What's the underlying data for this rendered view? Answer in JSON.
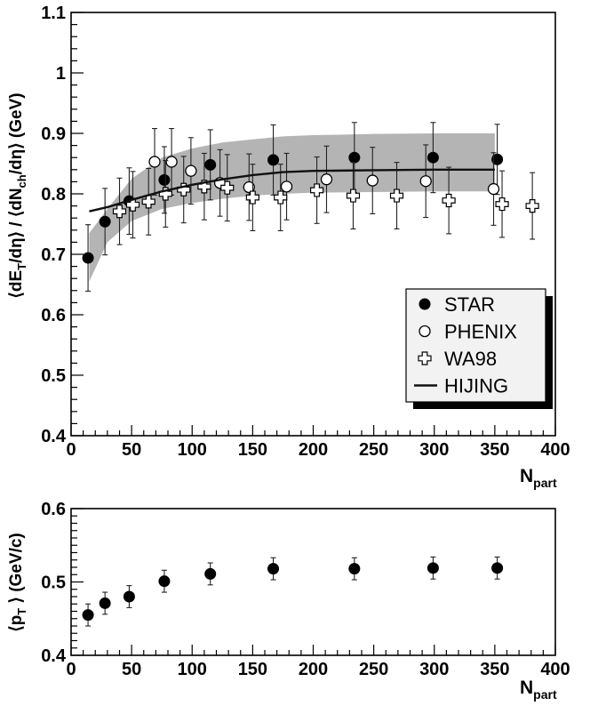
{
  "chart_data": [
    {
      "type": "scatter",
      "xlabel_main": "N",
      "xlabel_sub": "part",
      "ylabel": "⟨dE_T/dη⟩ / ⟨dN_ch/dη⟩ (GeV)",
      "ylabel_parts": {
        "open1": "⟨dE",
        "sub1": "T",
        "mid1": "/dη⟩ / ⟨dN",
        "sub2": "ch",
        "mid2": "/dη⟩ (GeV)"
      },
      "xlim": [
        0,
        400
      ],
      "ylim": [
        0.4,
        1.1
      ],
      "x_ticks": [
        0,
        50,
        100,
        150,
        200,
        250,
        300,
        350,
        400
      ],
      "y_ticks": [
        0.4,
        0.5,
        0.6,
        0.7,
        0.8,
        0.9,
        1.0,
        1.1
      ],
      "x_tick_labels": [
        "0",
        "50",
        "100",
        "150",
        "200",
        "250",
        "300",
        "350",
        "400"
      ],
      "y_tick_labels": [
        "0.4",
        "0.5",
        "0.6",
        "0.7",
        "0.8",
        "0.9",
        "1",
        "1.1"
      ],
      "grid": false,
      "legend_position": "bottom-right",
      "legend": [
        {
          "name": "STAR",
          "marker": "filled-circle"
        },
        {
          "name": "PHENIX",
          "marker": "open-circle"
        },
        {
          "name": "WA98",
          "marker": "open-cross"
        },
        {
          "name": "HIJING",
          "marker": "line"
        }
      ],
      "band": {
        "color": "#b4b4b4",
        "upper": [
          [
            15,
            0.735
          ],
          [
            30,
            0.775
          ],
          [
            50,
            0.825
          ],
          [
            75,
            0.86
          ],
          [
            100,
            0.875
          ],
          [
            125,
            0.885
          ],
          [
            150,
            0.89
          ],
          [
            175,
            0.895
          ],
          [
            200,
            0.897
          ],
          [
            250,
            0.899
          ],
          [
            300,
            0.9
          ],
          [
            350,
            0.9
          ]
        ],
        "lower": [
          [
            15,
            0.655
          ],
          [
            30,
            0.72
          ],
          [
            50,
            0.755
          ],
          [
            75,
            0.775
          ],
          [
            100,
            0.785
          ],
          [
            125,
            0.792
          ],
          [
            150,
            0.797
          ],
          [
            175,
            0.8
          ],
          [
            200,
            0.802
          ],
          [
            250,
            0.803
          ],
          [
            300,
            0.804
          ],
          [
            350,
            0.804
          ]
        ]
      },
      "series": [
        {
          "name": "STAR",
          "marker": "filled-circle",
          "points": [
            {
              "x": 14,
              "y": 0.694,
              "err": 0.055
            },
            {
              "x": 28,
              "y": 0.754,
              "err": 0.055
            },
            {
              "x": 48,
              "y": 0.788,
              "err": 0.055
            },
            {
              "x": 77,
              "y": 0.823,
              "err": 0.055
            },
            {
              "x": 115,
              "y": 0.848,
              "err": 0.058
            },
            {
              "x": 167,
              "y": 0.856,
              "err": 0.058
            },
            {
              "x": 234,
              "y": 0.86,
              "err": 0.058
            },
            {
              "x": 299,
              "y": 0.86,
              "err": 0.058
            },
            {
              "x": 352,
              "y": 0.857,
              "err": 0.058
            }
          ]
        },
        {
          "name": "PHENIX",
          "marker": "open-circle",
          "points": [
            {
              "x": 69,
              "y": 0.853,
              "err": 0.055
            },
            {
              "x": 83,
              "y": 0.853,
              "err": 0.055
            },
            {
              "x": 99,
              "y": 0.838,
              "err": 0.055
            },
            {
              "x": 123,
              "y": 0.818,
              "err": 0.055
            },
            {
              "x": 147,
              "y": 0.811,
              "err": 0.055
            },
            {
              "x": 178,
              "y": 0.812,
              "err": 0.055
            },
            {
              "x": 211,
              "y": 0.824,
              "err": 0.055
            },
            {
              "x": 249,
              "y": 0.822,
              "err": 0.055
            },
            {
              "x": 293,
              "y": 0.821,
              "err": 0.06
            },
            {
              "x": 349,
              "y": 0.808,
              "err": 0.06
            }
          ]
        },
        {
          "name": "WA98",
          "marker": "open-cross",
          "points": [
            {
              "x": 40,
              "y": 0.771,
              "err": 0.055
            },
            {
              "x": 51,
              "y": 0.782,
              "err": 0.055
            },
            {
              "x": 64,
              "y": 0.787,
              "err": 0.055
            },
            {
              "x": 78,
              "y": 0.8,
              "err": 0.055
            },
            {
              "x": 93,
              "y": 0.807,
              "err": 0.055
            },
            {
              "x": 110,
              "y": 0.812,
              "err": 0.055
            },
            {
              "x": 129,
              "y": 0.81,
              "err": 0.055
            },
            {
              "x": 150,
              "y": 0.794,
              "err": 0.055
            },
            {
              "x": 173,
              "y": 0.794,
              "err": 0.055
            },
            {
              "x": 203,
              "y": 0.806,
              "err": 0.055
            },
            {
              "x": 233,
              "y": 0.797,
              "err": 0.055
            },
            {
              "x": 269,
              "y": 0.797,
              "err": 0.055
            },
            {
              "x": 312,
              "y": 0.789,
              "err": 0.055
            },
            {
              "x": 356,
              "y": 0.783,
              "err": 0.055
            },
            {
              "x": 381,
              "y": 0.78,
              "err": 0.055
            }
          ]
        },
        {
          "name": "HIJING",
          "marker": "line",
          "points": [
            {
              "x": 15,
              "y": 0.771
            },
            {
              "x": 30,
              "y": 0.778
            },
            {
              "x": 50,
              "y": 0.79
            },
            {
              "x": 75,
              "y": 0.804
            },
            {
              "x": 100,
              "y": 0.815
            },
            {
              "x": 125,
              "y": 0.824
            },
            {
              "x": 150,
              "y": 0.831
            },
            {
              "x": 175,
              "y": 0.836
            },
            {
              "x": 200,
              "y": 0.838
            },
            {
              "x": 250,
              "y": 0.839
            },
            {
              "x": 300,
              "y": 0.84
            },
            {
              "x": 350,
              "y": 0.84
            }
          ]
        }
      ]
    },
    {
      "type": "scatter",
      "xlabel_main": "N",
      "xlabel_sub": "part",
      "ylabel": "⟨p_T ⟩ (GeV/c)",
      "ylabel_parts": {
        "open1": "⟨p",
        "sub1": "T",
        "mid1": " ⟩ (GeV/c)"
      },
      "xlim": [
        0,
        400
      ],
      "ylim": [
        0.4,
        0.6
      ],
      "x_ticks": [
        0,
        50,
        100,
        150,
        200,
        250,
        300,
        350,
        400
      ],
      "y_ticks": [
        0.4,
        0.5,
        0.6
      ],
      "x_tick_labels": [
        "0",
        "50",
        "100",
        "150",
        "200",
        "250",
        "300",
        "350",
        "400"
      ],
      "y_tick_labels": [
        "0.4",
        "0.5",
        "0.6"
      ],
      "grid": false,
      "series": [
        {
          "name": "STAR",
          "marker": "filled-circle",
          "points": [
            {
              "x": 14,
              "y": 0.455,
              "err": 0.015
            },
            {
              "x": 28,
              "y": 0.471,
              "err": 0.015
            },
            {
              "x": 48,
              "y": 0.48,
              "err": 0.015
            },
            {
              "x": 77,
              "y": 0.501,
              "err": 0.015
            },
            {
              "x": 115,
              "y": 0.511,
              "err": 0.015
            },
            {
              "x": 167,
              "y": 0.518,
              "err": 0.015
            },
            {
              "x": 234,
              "y": 0.518,
              "err": 0.015
            },
            {
              "x": 299,
              "y": 0.519,
              "err": 0.015
            },
            {
              "x": 352,
              "y": 0.519,
              "err": 0.015
            }
          ]
        }
      ]
    }
  ]
}
